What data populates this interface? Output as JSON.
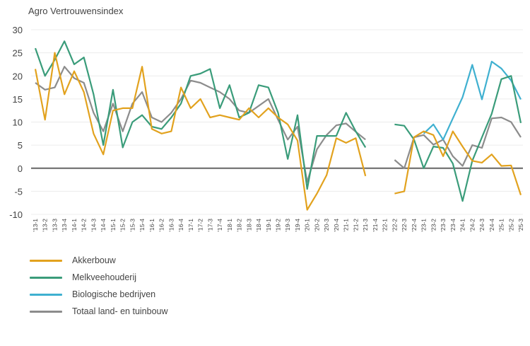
{
  "chart_data": {
    "type": "line",
    "title": "Agro Vertrouwensindex",
    "xlabel": "",
    "ylabel": "",
    "ylim": [
      -10,
      30
    ],
    "yticks": [
      -10,
      -5,
      0,
      5,
      10,
      15,
      20,
      25,
      30
    ],
    "grid": true,
    "legend_position": "bottom-left",
    "x": [
      "'13-1",
      "'13-2",
      "'13-3",
      "'13-4",
      "'14-1",
      "'14-2",
      "'14-3",
      "'14-4",
      "'15-1",
      "'15-2",
      "'15-3",
      "'15-4",
      "'16-1",
      "'16-2",
      "'16-3",
      "'16-4",
      "'17-1",
      "'17-2",
      "'17-3",
      "'17-4",
      "'18-1",
      "'18-2",
      "'18-3",
      "'18-4",
      "'19-1",
      "'19-2",
      "'19-3",
      "'19-4",
      "'20-1",
      "'20-2",
      "'20-3",
      "'20-4",
      "'21-1",
      "'21-2",
      "'21-3",
      "'21-4",
      "'22-1",
      "'22-2",
      "'22-3",
      "'22-4",
      "'23-1",
      "'23-2",
      "'23-3",
      "'23-4",
      "'24-1",
      "'24-2",
      "'24-3",
      "'24-4",
      "'25-1",
      "'25-2",
      "'25-3"
    ],
    "series": [
      {
        "name": "Akkerbouw",
        "color": "#e2a21e",
        "values": [
          21.5,
          10.5,
          25,
          16,
          21,
          16.5,
          7.5,
          3,
          12.5,
          13,
          13,
          22,
          8.5,
          7.5,
          8,
          17.5,
          13,
          15,
          11,
          11.5,
          11,
          10.5,
          13,
          11,
          13,
          11,
          9.5,
          6,
          -9,
          -5.5,
          -1.5,
          6.5,
          5.5,
          6.5,
          -1.7,
          null,
          null,
          -5.5,
          -5,
          6.7,
          8,
          7.2,
          2.6,
          8,
          4.7,
          1.6,
          1.2,
          3,
          0.5,
          0.6,
          -5.8
        ]
      },
      {
        "name": "Melkveehouderij",
        "color": "#3a9c7a",
        "values": [
          26,
          20,
          23.5,
          27.5,
          22.5,
          24,
          16,
          5,
          17,
          4.5,
          10,
          11.5,
          9,
          8.5,
          11,
          14,
          20,
          20.5,
          21.5,
          13,
          18,
          11,
          12,
          18,
          17.5,
          12,
          2,
          11.5,
          -4.5,
          7,
          7,
          7,
          12,
          8,
          4.5,
          null,
          null,
          9.5,
          9.2,
          6.2,
          0,
          4.7,
          4.4,
          1,
          -7.1,
          1.6,
          6.7,
          11.8,
          19.3,
          20,
          9.8
        ]
      },
      {
        "name": "Biologische bedrijven",
        "color": "#3fb0d0",
        "values": [
          null,
          null,
          null,
          null,
          null,
          null,
          null,
          null,
          null,
          null,
          null,
          null,
          null,
          null,
          null,
          null,
          null,
          null,
          null,
          null,
          null,
          null,
          null,
          null,
          null,
          null,
          null,
          null,
          null,
          null,
          null,
          null,
          null,
          null,
          null,
          null,
          null,
          null,
          null,
          null,
          7.5,
          9.5,
          6.2,
          10.8,
          15.4,
          22.4,
          14.9,
          23.1,
          21.6,
          19,
          14.9
        ]
      },
      {
        "name": "Totaal land- en tuinbouw",
        "color": "#8c8c8c",
        "values": [
          18.5,
          17,
          17.5,
          22,
          19.5,
          18.5,
          12,
          8,
          14,
          8,
          14,
          16.5,
          11,
          10,
          12,
          15,
          19,
          18.5,
          17.5,
          16.5,
          15,
          12.5,
          12,
          13.5,
          15,
          10.5,
          6.2,
          9,
          -3,
          4.1,
          7.2,
          9.3,
          9.7,
          7.9,
          6.2,
          null,
          null,
          1.8,
          0,
          6.7,
          7.2,
          5.1,
          6.2,
          2.6,
          0.5,
          5,
          4.4,
          10.8,
          11,
          10,
          6.7
        ]
      }
    ]
  }
}
